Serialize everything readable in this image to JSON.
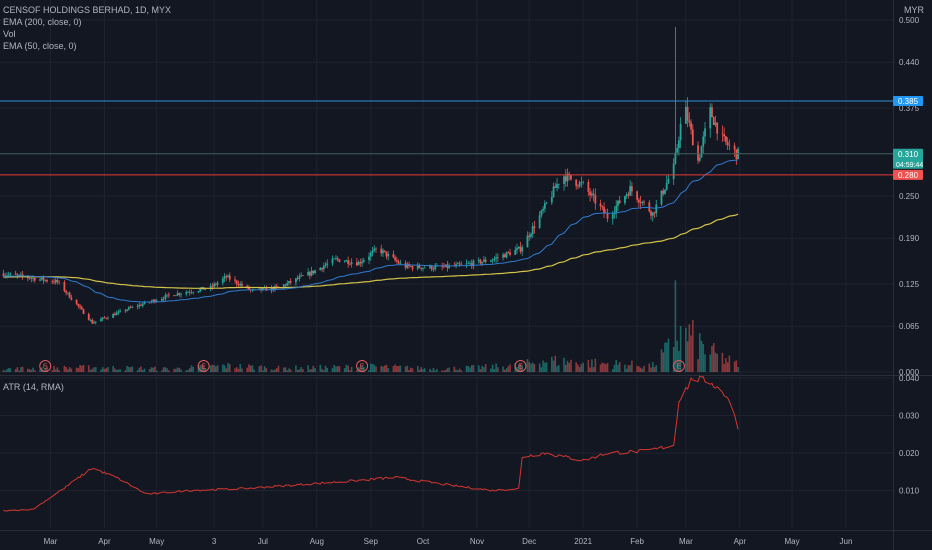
{
  "header": {
    "symbol": "CENSOF HOLDINGS BERHAD, 1D, MYX",
    "ema200_label": "EMA (200, close, 0)",
    "vol_label": "Vol",
    "ema50_label": "EMA (50, close, 0)",
    "atr_label": "ATR (14, RMA)",
    "currency": "MYR"
  },
  "colors": {
    "background": "#131722",
    "grid": "#1f2330",
    "up": "#26a69a",
    "down": "#ef5350",
    "ema200": "#d4c34a",
    "ema50": "#2f7bd0",
    "atr": "#d4362f",
    "resistance": "#2e8fd8",
    "support": "#e83a35"
  },
  "price_tags": [
    {
      "label": "0.385",
      "value": 0.385,
      "color": "#2196f3"
    },
    {
      "label": "0.310",
      "sub": "04:59:44",
      "value": 0.31,
      "color": "#26a69a"
    },
    {
      "label": "0.280",
      "value": 0.28,
      "color": "#ef5350"
    }
  ],
  "earnings_marker": "E",
  "chart_data": {
    "type": "candlestick",
    "x_tick_labels": [
      "Mar",
      "Apr",
      "May",
      "3",
      "Jul",
      "Aug",
      "Sep",
      "Oct",
      "Nov",
      "Dec",
      "2021",
      "Feb",
      "Mar",
      "Apr",
      "May",
      "Jun"
    ],
    "y_tick_labels": [
      "0.500",
      "0.440",
      "0.375",
      "0.310",
      "0.250",
      "0.190",
      "0.125",
      "0.065",
      "0.000"
    ],
    "atr_tick_labels": [
      "0.040",
      "0.030",
      "0.020",
      "0.010"
    ],
    "ylim": [
      0.0,
      0.5
    ],
    "atr_ylim": [
      0.0,
      0.04
    ],
    "horizontal_lines": [
      {
        "value": 0.385,
        "color": "#2e8fd8"
      },
      {
        "value": 0.28,
        "color": "#e83a35"
      },
      {
        "value": 0.31,
        "color": "#3d5d5a"
      }
    ],
    "earnings_dates": [
      "2020-02-27",
      "2020-05-28",
      "2020-08-27",
      "2020-11-26",
      "2021-02-25"
    ],
    "price_anchors": [
      [
        "2020-02-01",
        0.14
      ],
      [
        "2020-03-05",
        0.128
      ],
      [
        "2020-03-25",
        0.07
      ],
      [
        "2020-04-15",
        0.09
      ],
      [
        "2020-05-10",
        0.11
      ],
      [
        "2020-06-01",
        0.12
      ],
      [
        "2020-06-10",
        0.135
      ],
      [
        "2020-06-25",
        0.115
      ],
      [
        "2020-07-10",
        0.12
      ],
      [
        "2020-07-28",
        0.14
      ],
      [
        "2020-08-12",
        0.16
      ],
      [
        "2020-08-25",
        0.155
      ],
      [
        "2020-09-05",
        0.175
      ],
      [
        "2020-09-20",
        0.15
      ],
      [
        "2020-10-10",
        0.148
      ],
      [
        "2020-10-25",
        0.152
      ],
      [
        "2020-11-10",
        0.16
      ],
      [
        "2020-11-26",
        0.175
      ],
      [
        "2020-12-08",
        0.225
      ],
      [
        "2020-12-20",
        0.28
      ],
      [
        "2021-01-01",
        0.265
      ],
      [
        "2021-01-15",
        0.22
      ],
      [
        "2021-01-28",
        0.26
      ],
      [
        "2021-02-10",
        0.225
      ],
      [
        "2021-02-22",
        0.29
      ],
      [
        "2021-02-28",
        0.38
      ],
      [
        "2021-03-08",
        0.3
      ],
      [
        "2021-03-15",
        0.37
      ],
      [
        "2021-03-22",
        0.33
      ],
      [
        "2021-03-30",
        0.31
      ]
    ],
    "volume_anchors": [
      [
        "2020-02-01",
        0.004
      ],
      [
        "2020-03-25",
        0.006
      ],
      [
        "2020-05-10",
        0.004
      ],
      [
        "2020-06-10",
        0.008
      ],
      [
        "2020-07-10",
        0.005
      ],
      [
        "2020-08-12",
        0.006
      ],
      [
        "2020-09-05",
        0.007
      ],
      [
        "2020-10-10",
        0.004
      ],
      [
        "2020-11-26",
        0.008
      ],
      [
        "2020-12-08",
        0.015
      ],
      [
        "2021-01-01",
        0.012
      ],
      [
        "2021-02-10",
        0.008
      ],
      [
        "2021-02-28",
        0.05
      ],
      [
        "2021-03-15",
        0.025
      ],
      [
        "2021-03-30",
        0.01
      ]
    ],
    "atr_anchors": [
      [
        "2020-02-01",
        0.0045
      ],
      [
        "2020-02-20",
        0.005
      ],
      [
        "2020-03-10",
        0.011
      ],
      [
        "2020-03-25",
        0.016
      ],
      [
        "2020-04-10",
        0.013
      ],
      [
        "2020-04-25",
        0.009
      ],
      [
        "2020-05-20",
        0.01
      ],
      [
        "2020-06-20",
        0.0105
      ],
      [
        "2020-07-20",
        0.0115
      ],
      [
        "2020-08-20",
        0.0125
      ],
      [
        "2020-09-15",
        0.0135
      ],
      [
        "2020-10-15",
        0.0115
      ],
      [
        "2020-11-10",
        0.01
      ],
      [
        "2020-11-25",
        0.0105
      ],
      [
        "2020-11-27",
        0.019
      ],
      [
        "2020-12-10",
        0.02
      ],
      [
        "2021-01-01",
        0.018
      ],
      [
        "2021-01-15",
        0.02
      ],
      [
        "2021-02-05",
        0.0205
      ],
      [
        "2021-02-22",
        0.022
      ],
      [
        "2021-02-25",
        0.034
      ],
      [
        "2021-03-05",
        0.04
      ],
      [
        "2021-03-15",
        0.039
      ],
      [
        "2021-03-25",
        0.035
      ],
      [
        "2021-03-31",
        0.027
      ]
    ]
  }
}
